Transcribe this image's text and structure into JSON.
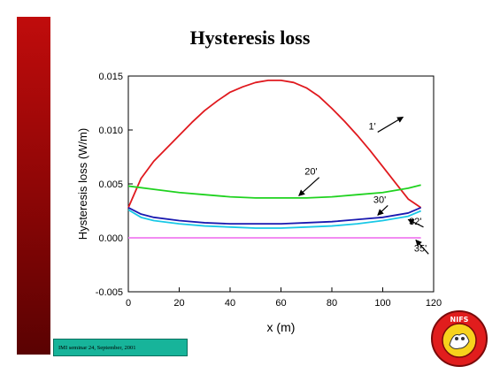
{
  "slide": {
    "title": "Hysteresis loss",
    "footer": "IMI seminar 24, September, 2001"
  },
  "chart_data": {
    "type": "line",
    "xlabel": "x (m)",
    "ylabel": "Hysteresis loss (W/m)",
    "xlim": [
      0,
      120
    ],
    "ylim": [
      -0.005,
      0.015
    ],
    "xticks": [
      0,
      20,
      40,
      60,
      80,
      100,
      120
    ],
    "yticks": [
      -0.005,
      0.0,
      0.005,
      0.01,
      0.015
    ],
    "ytick_labels": [
      "-0.005",
      "0.000",
      "0.005",
      "0.010",
      "0.015"
    ],
    "grid": false,
    "series": [
      {
        "name": "1'",
        "color": "#e0191e",
        "x": [
          0,
          5,
          10,
          15,
          20,
          25,
          30,
          35,
          40,
          45,
          50,
          55,
          57,
          60,
          65,
          70,
          75,
          80,
          85,
          90,
          95,
          100,
          105,
          110,
          115
        ],
        "y": [
          0.0028,
          0.0055,
          0.0071,
          0.0083,
          0.0095,
          0.0107,
          0.0118,
          0.0127,
          0.0135,
          0.014,
          0.0144,
          0.0146,
          0.0146,
          0.0146,
          0.0144,
          0.0139,
          0.0131,
          0.012,
          0.0108,
          0.0095,
          0.0081,
          0.0066,
          0.0051,
          0.0036,
          0.0028
        ]
      },
      {
        "name": "20'",
        "color": "#1fd21f",
        "x": [
          0,
          10,
          20,
          30,
          40,
          50,
          60,
          70,
          80,
          90,
          100,
          110,
          115
        ],
        "y": [
          0.0048,
          0.0045,
          0.0042,
          0.004,
          0.0038,
          0.0037,
          0.0037,
          0.0037,
          0.0038,
          0.004,
          0.0042,
          0.0046,
          0.0049
        ]
      },
      {
        "name": "30'",
        "color": "#1a1ab0",
        "x": [
          0,
          5,
          10,
          20,
          30,
          40,
          50,
          60,
          70,
          80,
          90,
          100,
          110,
          115
        ],
        "y": [
          0.0028,
          0.0022,
          0.0019,
          0.0016,
          0.0014,
          0.0013,
          0.0013,
          0.0013,
          0.0014,
          0.0015,
          0.0017,
          0.0019,
          0.0023,
          0.0028
        ]
      },
      {
        "name": "32'",
        "color": "#19c8e6",
        "x": [
          0,
          5,
          10,
          20,
          30,
          40,
          50,
          60,
          70,
          80,
          90,
          100,
          110,
          115
        ],
        "y": [
          0.0026,
          0.0019,
          0.0016,
          0.0013,
          0.0011,
          0.001,
          0.0009,
          0.0009,
          0.001,
          0.0011,
          0.0013,
          0.0016,
          0.002,
          0.0025
        ]
      },
      {
        "name": "35'",
        "color": "#f07cf0",
        "x": [
          0,
          115
        ],
        "y": [
          0.0,
          0.0
        ]
      }
    ],
    "annotations": [
      {
        "text": "1'",
        "series": "1'",
        "ax": 108,
        "ay": 0.0112,
        "tx": 98,
        "ty": 0.0098,
        "color": "#000000"
      },
      {
        "text": "20'",
        "series": "20'",
        "ax": 67,
        "ay": 0.0039,
        "tx": 75,
        "ty": 0.0056,
        "color": "#000000"
      },
      {
        "text": "30'",
        "series": "30'",
        "ax": 98,
        "ay": 0.0021,
        "tx": 102,
        "ty": 0.003,
        "color": "#000000"
      },
      {
        "text": "32'",
        "series": "32'",
        "ax": 110,
        "ay": 0.0017,
        "tx": 116,
        "ty": 0.001,
        "color": "#000000"
      },
      {
        "text": "35'",
        "series": "35'",
        "ax": 113,
        "ay": -0.0002,
        "tx": 118,
        "ty": -0.0015,
        "color": "#000000"
      }
    ]
  },
  "logo": {
    "text": "NIFS",
    "colors": {
      "ring": "#e11d1d",
      "inner": "#f7d21c",
      "outline": "#7a0a0a"
    }
  }
}
